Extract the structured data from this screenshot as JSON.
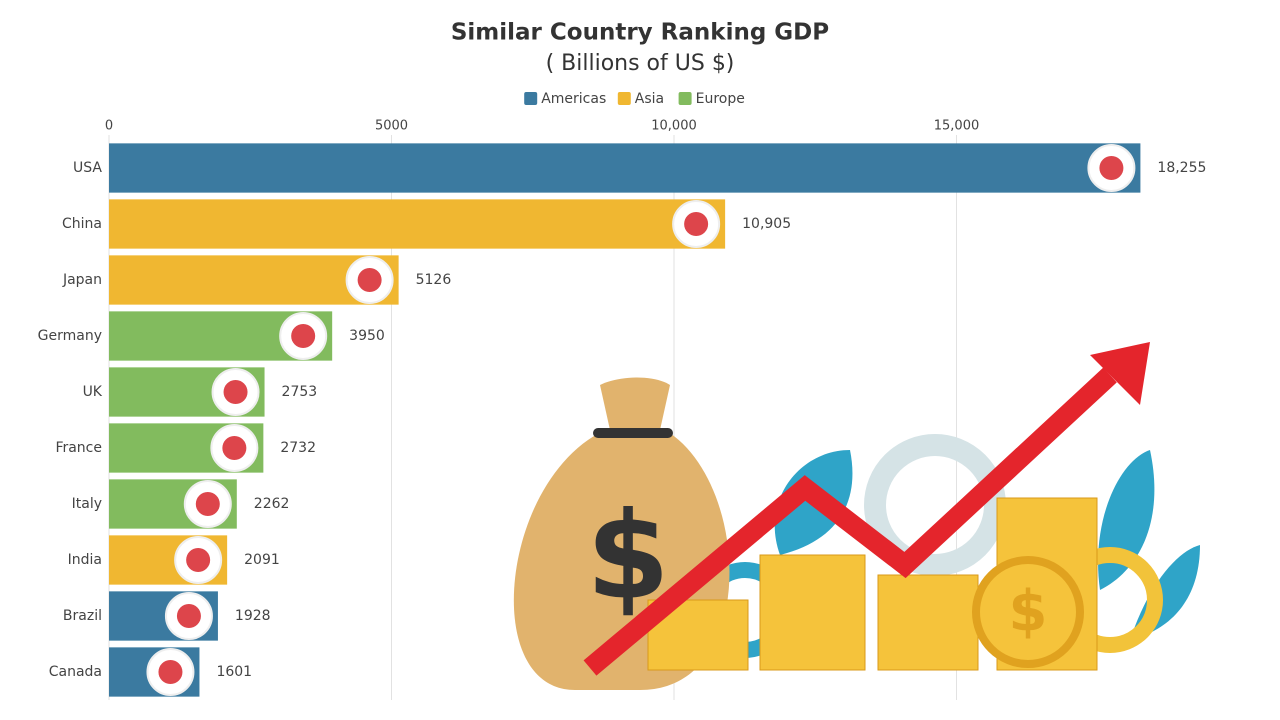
{
  "chart_data": {
    "type": "bar",
    "orientation": "horizontal",
    "title": "Similar Country Ranking GDP",
    "subtitle": "( Billions of US $)",
    "categories": [
      "USA",
      "China",
      "Japan",
      "Germany",
      "UK",
      "France",
      "Italy",
      "India",
      "Brazil",
      "Canada"
    ],
    "series": [
      {
        "name": "Americas",
        "color": "#3b7aa0",
        "values": [
          18255,
          null,
          null,
          null,
          null,
          null,
          null,
          null,
          1928,
          1601
        ],
        "value_labels": [
          "18,255",
          null,
          null,
          null,
          null,
          null,
          null,
          null,
          "1928",
          "1601"
        ]
      },
      {
        "name": "Asia",
        "color": "#f0b731",
        "values": [
          null,
          10905,
          5126,
          null,
          null,
          null,
          null,
          2091,
          null,
          null
        ],
        "value_labels": [
          null,
          "10,905",
          "5126",
          null,
          null,
          null,
          null,
          "2091",
          null,
          null
        ]
      },
      {
        "name": "Europe",
        "color": "#82bb5e",
        "values": [
          null,
          null,
          null,
          3950,
          2753,
          2732,
          2262,
          null,
          null,
          null
        ],
        "value_labels": [
          null,
          null,
          null,
          "3950",
          "2753",
          "2732",
          "2262",
          null,
          null,
          null
        ]
      }
    ],
    "xlim": [
      0,
      20000
    ],
    "xticks": [
      0,
      5000,
      {
        "value": 10000,
        "label": "10,000"
      },
      {
        "value": 15000,
        "label": "15,000"
      }
    ],
    "grid": true,
    "legend": "top"
  }
}
